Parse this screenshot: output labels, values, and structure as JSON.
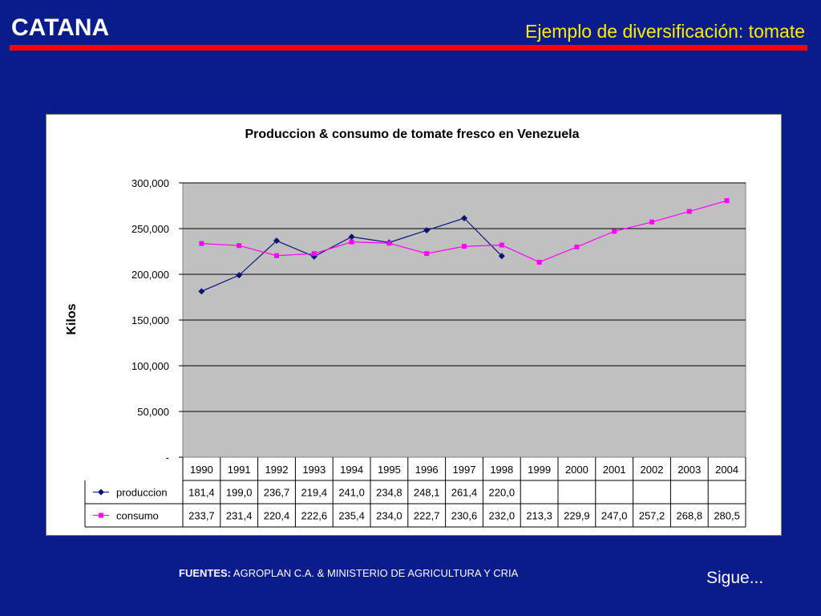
{
  "header": {
    "brand": "CATANA",
    "title": "Ejemplo de diversificación: tomate"
  },
  "footer": {
    "sources_label": "FUENTES:",
    "sources_text": "AGROPLAN C.A. & MINISTERIO DE AGRICULTURA Y CRIA",
    "next_label": "Sigue..."
  },
  "colors": {
    "background": "#0a1b8c",
    "title": "#ffee00",
    "rule": "#ff0000",
    "plot_area": "#c0c0c0",
    "produccion": "#0a1478",
    "consumo": "#ff00ff"
  },
  "chart_data": {
    "type": "line",
    "title": "Produccion & consumo de tomate fresco en Venezuela",
    "ylabel": "Kilos",
    "xlabel": "",
    "ylim": [
      0,
      300000
    ],
    "yticks": [
      0,
      50000,
      100000,
      150000,
      200000,
      250000,
      300000
    ],
    "ytick_labels": [
      "-",
      "50,000",
      "100,000",
      "150,000",
      "200,000",
      "250,000",
      "300,000"
    ],
    "grid": true,
    "legend": "data-table",
    "categories": [
      "1990",
      "1991",
      "1992",
      "1993",
      "1994",
      "1995",
      "1996",
      "1997",
      "1998",
      "1999",
      "2000",
      "2001",
      "2002",
      "2003",
      "2004"
    ],
    "series": [
      {
        "name": "produccion",
        "marker": "diamond",
        "values": [
          181400,
          199000,
          236700,
          219400,
          241000,
          234800,
          248100,
          261400,
          220000,
          null,
          null,
          null,
          null,
          null,
          null
        ],
        "table_labels": [
          "181,4",
          "199,0",
          "236,7",
          "219,4",
          "241,0",
          "234,8",
          "248,1",
          "261,4",
          "220,0",
          "",
          "",
          "",
          "",
          "",
          ""
        ]
      },
      {
        "name": "consumo",
        "marker": "square",
        "values": [
          233700,
          231400,
          220400,
          222600,
          235400,
          234000,
          222700,
          230600,
          232000,
          213300,
          229900,
          247000,
          257200,
          268800,
          280500
        ],
        "table_labels": [
          "233,7",
          "231,4",
          "220,4",
          "222,6",
          "235,4",
          "234,0",
          "222,7",
          "230,6",
          "232,0",
          "213,3",
          "229,9",
          "247,0",
          "257,2",
          "268,8",
          "280,5"
        ]
      }
    ]
  }
}
